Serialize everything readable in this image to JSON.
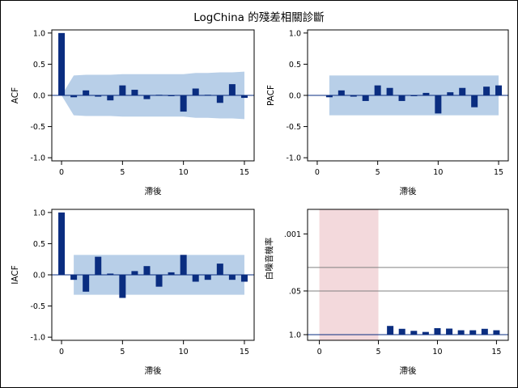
{
  "figure": {
    "title": "LogChina 的殘差相關診斷",
    "colors": {
      "bar": "#0a2d80",
      "band": "#b8cfe8",
      "zero_line": "#0a2d80",
      "pink_region": "#f3d9dc",
      "ref_line": "#808080",
      "frame": "#000000"
    }
  },
  "chart_data": [
    {
      "id": "acf",
      "type": "bar",
      "xlabel": "滯後",
      "ylabel": "ACF",
      "xlim": [
        -0.8,
        15.8
      ],
      "ylim": [
        -1.05,
        1.05
      ],
      "xticks": [
        "0",
        "5",
        "10",
        "15"
      ],
      "yticks": [
        "1.0",
        "0.5",
        "0.0",
        "-0.5",
        "-1.0"
      ],
      "lags": [
        0,
        1,
        2,
        3,
        4,
        5,
        6,
        7,
        8,
        9,
        10,
        11,
        12,
        13,
        14,
        15
      ],
      "values": [
        1.0,
        -0.03,
        0.08,
        -0.02,
        -0.08,
        0.16,
        0.09,
        -0.06,
        0.01,
        -0.01,
        -0.26,
        0.11,
        0.01,
        -0.12,
        0.18,
        -0.04
      ],
      "band": {
        "lags": [
          0,
          1,
          2,
          3,
          4,
          5,
          6,
          7,
          8,
          9,
          10,
          11,
          12,
          13,
          14,
          15
        ],
        "upper": [
          0.0,
          0.32,
          0.33,
          0.33,
          0.33,
          0.34,
          0.34,
          0.34,
          0.34,
          0.34,
          0.34,
          0.36,
          0.36,
          0.37,
          0.37,
          0.38
        ],
        "lower": [
          0.0,
          -0.32,
          -0.33,
          -0.33,
          -0.33,
          -0.34,
          -0.34,
          -0.34,
          -0.34,
          -0.34,
          -0.34,
          -0.36,
          -0.36,
          -0.37,
          -0.37,
          -0.38
        ]
      }
    },
    {
      "id": "pacf",
      "type": "bar",
      "xlabel": "滯後",
      "ylabel": "PACF",
      "xlim": [
        -0.8,
        15.8
      ],
      "ylim": [
        -1.05,
        1.05
      ],
      "xticks": [
        "0",
        "5",
        "10",
        "15"
      ],
      "yticks": [
        "1.0",
        "0.5",
        "0.0",
        "-0.5",
        "-1.0"
      ],
      "lags": [
        1,
        2,
        3,
        4,
        5,
        6,
        7,
        8,
        9,
        10,
        11,
        12,
        13,
        14,
        15
      ],
      "values": [
        -0.03,
        0.08,
        -0.02,
        -0.09,
        0.16,
        0.12,
        -0.09,
        -0.01,
        0.04,
        -0.29,
        0.05,
        0.12,
        -0.19,
        0.14,
        0.16
      ],
      "band": {
        "lags": [
          1,
          15
        ],
        "upper": [
          0.32,
          0.32
        ],
        "lower": [
          -0.32,
          -0.32
        ]
      }
    },
    {
      "id": "iacf",
      "type": "bar",
      "xlabel": "滯後",
      "ylabel": "IACF",
      "xlim": [
        -0.8,
        15.8
      ],
      "ylim": [
        -1.05,
        1.05
      ],
      "xticks": [
        "0",
        "5",
        "10",
        "15"
      ],
      "yticks": [
        "1.0",
        "0.5",
        "0.0",
        "-0.5",
        "-1.0"
      ],
      "lags": [
        0,
        1,
        2,
        3,
        4,
        5,
        6,
        7,
        8,
        9,
        10,
        11,
        12,
        13,
        14,
        15
      ],
      "values": [
        1.0,
        -0.08,
        -0.27,
        0.29,
        0.02,
        -0.37,
        0.06,
        0.14,
        -0.19,
        0.04,
        0.32,
        -0.11,
        -0.08,
        0.18,
        -0.08,
        -0.11
      ],
      "band": {
        "lags": [
          1,
          15
        ],
        "upper": [
          0.32,
          0.32
        ],
        "lower": [
          -0.32,
          -0.32
        ]
      }
    },
    {
      "id": "white-noise",
      "type": "bar",
      "xlabel": "滯後",
      "ylabel": "白噪音機率",
      "xlim": [
        -1.0,
        16.0
      ],
      "y_scale": "log-probability (1.0 at bottom, 0.001 toward top)",
      "xticks": [
        "0",
        "5",
        "10",
        "15"
      ],
      "yticks": [
        "1.0",
        ".05",
        ".001"
      ],
      "reference_lines": [
        0.05,
        0.01
      ],
      "shaded_x_range": [
        0,
        5
      ],
      "lags": [
        6,
        7,
        8,
        9,
        10,
        11,
        12,
        13,
        14,
        15
      ],
      "values": [
        0.55,
        0.67,
        0.77,
        0.83,
        0.64,
        0.66,
        0.74,
        0.74,
        0.67,
        0.74
      ]
    }
  ]
}
